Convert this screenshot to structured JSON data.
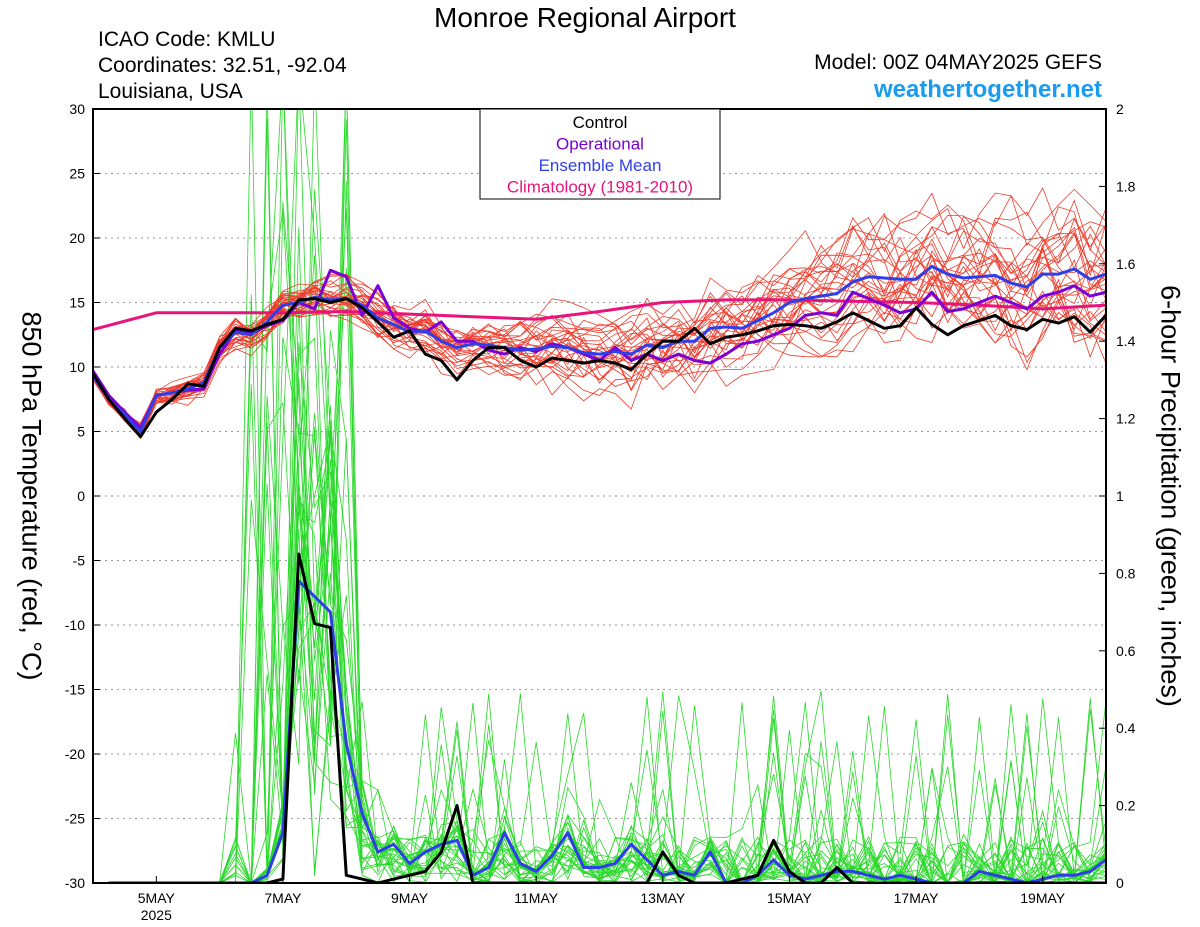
{
  "header": {
    "title": "Monroe Regional Airport",
    "icao": "ICAO Code: KMLU",
    "coords": "Coordinates: 32.51, -92.04",
    "region": "Louisiana, USA",
    "model": "Model: 00Z 04MAY2025 GEFS",
    "site": "weathertogether.net"
  },
  "chart_data": {
    "type": "line",
    "ylabel": "850 hPa Temperature (red, °C)",
    "y2label": "6-hour Precipitation (green, inches)",
    "ylim": [
      -30,
      30
    ],
    "y2lim": [
      0,
      2
    ],
    "yticks": [
      "30",
      "25",
      "20",
      "15",
      "10",
      "5",
      "0",
      "-5",
      "-10",
      "-15",
      "-20",
      "-25",
      "-30"
    ],
    "y2ticks": [
      "2",
      "1.8",
      "1.6",
      "1.4",
      "1.2",
      "1",
      "0.8",
      "0.6",
      "0.4",
      "0.2",
      "0"
    ],
    "x_range_days": [
      0,
      16
    ],
    "x_ticks": [
      {
        "day": 1,
        "label": "5MAY",
        "sub": "2025"
      },
      {
        "day": 3,
        "label": "7MAY",
        "sub": ""
      },
      {
        "day": 5,
        "label": "9MAY",
        "sub": ""
      },
      {
        "day": 7,
        "label": "11MAY",
        "sub": ""
      },
      {
        "day": 9,
        "label": "13MAY",
        "sub": ""
      },
      {
        "day": 11,
        "label": "15MAY",
        "sub": ""
      },
      {
        "day": 13,
        "label": "17MAY",
        "sub": ""
      },
      {
        "day": 15,
        "label": "19MAY",
        "sub": ""
      }
    ],
    "grid": "horizontal dotted",
    "legend_position": "top-center",
    "legend": [
      {
        "label": "Control",
        "color": "#000000"
      },
      {
        "label": "Operational",
        "color": "#7b00d4"
      },
      {
        "label": "Ensemble Mean",
        "color": "#2f3fe8"
      },
      {
        "label": "Climatology (1981-2010)",
        "color": "#e8147c"
      }
    ],
    "colors": {
      "temp_members": "#ee3b2b",
      "precip_members": "#2ad82a",
      "control": "#000000",
      "operational": "#7b00d4",
      "mean": "#2f3fe8",
      "climatology": "#e8147c"
    },
    "series": [
      {
        "name": "Climatology (1981-2010)",
        "axis": "left",
        "x_step": 1,
        "values": [
          12.9,
          14.2,
          14.2,
          14.2,
          14.3,
          14.1,
          13.9,
          13.7,
          14.3,
          15.0,
          15.2,
          15.2,
          15.1,
          15.0,
          14.8,
          14.5,
          14.8
        ]
      },
      {
        "name": "Control",
        "axis": "left",
        "x_step": 0.25,
        "values": [
          9.5,
          7.5,
          6.0,
          4.6,
          6.5,
          7.5,
          8.7,
          8.5,
          11.5,
          13.0,
          12.8,
          13.3,
          13.7,
          15.2,
          15.3,
          15.0,
          15.3,
          14.6,
          13.5,
          12.3,
          12.8,
          11.0,
          10.5,
          9.0,
          10.5,
          11.5,
          11.5,
          10.5,
          10.0,
          10.7,
          10.5,
          10.3,
          10.5,
          10.3,
          9.8,
          11.0,
          12.0,
          12.0,
          13.0,
          11.8,
          12.3,
          12.5,
          12.8,
          13.2,
          13.3,
          13.2,
          13.0,
          13.5,
          14.2,
          13.6,
          13.0,
          13.2,
          14.6,
          13.3,
          12.5,
          13.2,
          13.6,
          14.0,
          13.2,
          12.9,
          13.7,
          13.4,
          13.9,
          12.7,
          14.0,
          13.5,
          12.8,
          12.0,
          13.2
        ]
      },
      {
        "name": "Operational",
        "axis": "left",
        "x_step": 0.25,
        "values": [
          9.7,
          7.8,
          6.5,
          5.3,
          7.8,
          8.0,
          8.2,
          8.3,
          11.0,
          12.8,
          12.6,
          13.2,
          13.6,
          15.0,
          14.5,
          17.5,
          17.0,
          14.0,
          16.3,
          13.8,
          13.0,
          12.7,
          13.5,
          12.0,
          12.0,
          11.3,
          11.0,
          11.5,
          11.2,
          11.8,
          11.5,
          11.0,
          10.5,
          11.5,
          10.5,
          11.0,
          10.5,
          11.0,
          10.5,
          10.3,
          11.0,
          11.8,
          12.0,
          12.5,
          13.0,
          14.0,
          14.2,
          14.0,
          15.8,
          15.3,
          14.8,
          14.2,
          14.5,
          15.8,
          14.3,
          14.5,
          15.0,
          15.5,
          15.0,
          14.5,
          15.5,
          15.8,
          16.3,
          15.5,
          15.8,
          15.5,
          16.5,
          16.0,
          17.5
        ]
      },
      {
        "name": "Ensemble Mean",
        "axis": "left",
        "x_step": 0.25,
        "values": [
          9.3,
          7.5,
          6.3,
          5.0,
          7.8,
          8.0,
          8.3,
          8.8,
          11.5,
          12.7,
          12.5,
          13.5,
          14.8,
          15.0,
          15.4,
          15.2,
          15.3,
          14.8,
          13.8,
          13.3,
          12.7,
          12.8,
          12.0,
          11.5,
          11.8,
          11.7,
          11.5,
          11.3,
          11.4,
          11.6,
          11.5,
          11.1,
          11.0,
          11.2,
          11.0,
          11.7,
          11.5,
          12.0,
          12.0,
          13.0,
          13.1,
          13.0,
          13.6,
          14.2,
          15.0,
          15.3,
          15.5,
          15.7,
          16.6,
          17.0,
          16.9,
          16.8,
          16.8,
          17.8,
          17.2,
          16.9,
          17.0,
          17.1,
          16.5,
          16.2,
          17.2,
          17.2,
          17.6,
          16.8,
          17.2,
          17.0,
          16.8,
          16.2,
          17.8
        ]
      },
      {
        "name": "Control",
        "axis": "right",
        "x_step": 0.25,
        "start_day": 0.25,
        "values": [
          0,
          0,
          0,
          0,
          0,
          0,
          0,
          0,
          0,
          0,
          0,
          0.01,
          0.85,
          0.67,
          0.66,
          0.02,
          0.01,
          0,
          0.01,
          0.02,
          0.03,
          0.08,
          0.2,
          0,
          0,
          0,
          0,
          0,
          0,
          0,
          0,
          0,
          0,
          0,
          0,
          0.08,
          0.02,
          0,
          0,
          0,
          0.01,
          0.02,
          0.11,
          0.03,
          0,
          0,
          0.04,
          0,
          0,
          0,
          0,
          0,
          0,
          0,
          0,
          0,
          0,
          0,
          0,
          0,
          0,
          0,
          0,
          0,
          0,
          0,
          0,
          0
        ]
      },
      {
        "name": "Ensemble Mean",
        "axis": "right",
        "x_step": 0.25,
        "start_day": 0.25,
        "values": [
          0,
          0,
          0,
          0,
          0,
          0,
          0,
          0,
          0,
          0,
          0.02,
          0.13,
          0.78,
          0.74,
          0.7,
          0.36,
          0.18,
          0.08,
          0.1,
          0.05,
          0.08,
          0.1,
          0.11,
          0.02,
          0.04,
          0.13,
          0.05,
          0.03,
          0.07,
          0.13,
          0.04,
          0.04,
          0.05,
          0.1,
          0.06,
          0.02,
          0.03,
          0.02,
          0.08,
          0,
          0,
          0.02,
          0.06,
          0.02,
          0.01,
          0.02,
          0.03,
          0.03,
          0.02,
          0.01,
          0.02,
          0.01,
          0,
          0,
          0,
          0.03,
          0.02,
          0.01,
          0,
          0.01,
          0.02,
          0.02,
          0.03,
          0.06,
          0.06,
          0,
          0,
          0,
          0.02
        ]
      }
    ],
    "members": {
      "temperature_count": 30,
      "temperature_range": [
        4.0,
        24.0
      ],
      "precip_count": 30,
      "precip_max": 2.0
    }
  }
}
